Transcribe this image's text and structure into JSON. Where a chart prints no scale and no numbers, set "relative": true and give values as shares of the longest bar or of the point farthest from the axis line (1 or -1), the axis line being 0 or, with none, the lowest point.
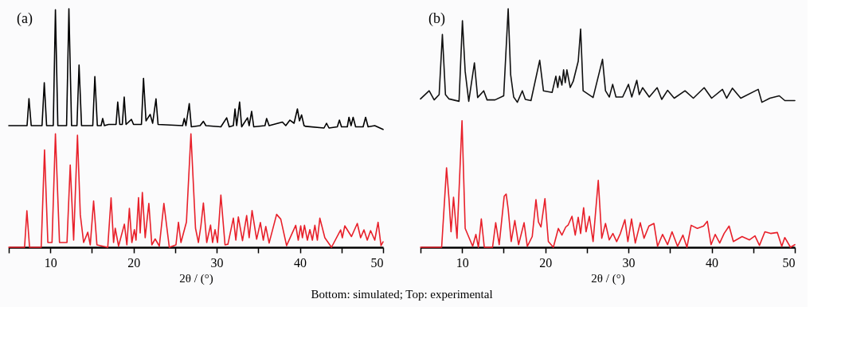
{
  "chart_data": [
    {
      "type": "line",
      "title": "(a)",
      "xlabel": "2θ / (°)",
      "relative": true,
      "grid": false,
      "annotations": [
        "Bottom: simulated; Top: experimental"
      ],
      "xlim": [
        5,
        50
      ],
      "xticks": [
        {
          "value": 5,
          "label": null
        },
        10,
        {
          "value": 15,
          "label": null
        },
        20,
        {
          "value": 25,
          "label": null
        },
        30,
        {
          "value": 35,
          "label": null
        },
        40,
        {
          "value": 45,
          "label": null
        },
        50
      ],
      "series": [
        {
          "color": "#000000",
          "x": [
            5,
            7.2,
            7.43,
            7.7,
            9.0,
            9.27,
            9.55,
            10.35,
            10.61,
            10.9,
            11.95,
            12.23,
            12.55,
            13.2,
            13.45,
            13.75,
            15.1,
            15.35,
            15.65,
            16.1,
            16.29,
            16.5,
            17.0,
            17.9,
            18.1,
            18.35,
            18.65,
            18.88,
            19.1,
            19.75,
            20.0,
            20.95,
            21.2,
            21.5,
            22.0,
            22.3,
            22.7,
            22.95,
            25.9,
            26.1,
            26.3,
            26.7,
            26.95,
            28.0,
            28.4,
            28.7,
            30.5,
            31.2,
            31.5,
            32.0,
            32.2,
            32.4,
            32.75,
            33.0,
            33.7,
            33.9,
            34.2,
            34.45,
            35.8,
            36.0,
            36.3,
            37.9,
            38.3,
            38.8,
            39.3,
            39.7,
            39.95,
            40.2,
            40.5,
            40.7,
            42.9,
            43.2,
            43.5,
            44.5,
            44.75,
            45.0,
            45.7,
            45.9,
            46.15,
            46.4,
            46.7,
            47.6,
            47.9,
            48.2,
            49.0,
            50
          ],
          "values": [
            0.51,
            0.51,
            0.623,
            0.51,
            0.51,
            0.69,
            0.51,
            0.51,
            0.996,
            0.51,
            0.51,
            1.0,
            0.51,
            0.51,
            0.764,
            0.51,
            0.51,
            0.716,
            0.51,
            0.51,
            0.54,
            0.51,
            0.515,
            0.515,
            0.609,
            0.515,
            0.515,
            0.63,
            0.515,
            0.536,
            0.515,
            0.515,
            0.708,
            0.53,
            0.557,
            0.52,
            0.622,
            0.515,
            0.51,
            0.54,
            0.51,
            0.602,
            0.505,
            0.51,
            0.528,
            0.51,
            0.505,
            0.543,
            0.505,
            0.51,
            0.58,
            0.51,
            0.609,
            0.505,
            0.543,
            0.51,
            0.57,
            0.505,
            0.51,
            0.54,
            0.51,
            0.525,
            0.51,
            0.533,
            0.52,
            0.58,
            0.53,
            0.555,
            0.51,
            0.507,
            0.5,
            0.52,
            0.5,
            0.505,
            0.533,
            0.505,
            0.505,
            0.545,
            0.51,
            0.545,
            0.505,
            0.505,
            0.545,
            0.505,
            0.51,
            0.494
          ]
        },
        {
          "color": "#e8202a",
          "x": [
            5,
            6.9,
            7.18,
            7.5,
            8.9,
            9.3,
            9.7,
            10.2,
            10.61,
            11.1,
            12.0,
            12.39,
            12.8,
            13.26,
            13.6,
            14.0,
            14.5,
            14.8,
            15.2,
            15.6,
            16.9,
            17.3,
            17.6,
            17.8,
            18.2,
            18.9,
            19.2,
            19.5,
            19.8,
            20.1,
            20.3,
            20.6,
            20.8,
            21.06,
            21.4,
            21.84,
            22.2,
            22.6,
            23.1,
            23.65,
            24.3,
            25.1,
            25.4,
            25.7,
            26.36,
            26.9,
            27.45,
            27.8,
            28.1,
            28.4,
            28.8,
            29.26,
            29.5,
            29.8,
            30.1,
            30.5,
            31.0,
            31.35,
            32.0,
            32.3,
            32.6,
            33.1,
            33.6,
            33.9,
            34.25,
            34.8,
            35.25,
            35.6,
            35.9,
            36.3,
            37.2,
            37.7,
            38.4,
            39.5,
            39.8,
            40.1,
            40.3,
            40.55,
            40.9,
            41.2,
            41.5,
            41.8,
            42.1,
            42.4,
            43.0,
            43.8,
            44.9,
            45.1,
            45.4,
            46.2,
            46.9,
            47.3,
            47.7,
            48.1,
            48.5,
            49.0,
            49.4,
            49.75,
            50
          ],
          "values": [
            0,
            0,
            0.153,
            0,
            0,
            0.408,
            0.02,
            0.02,
            0.476,
            0.02,
            0.02,
            0.345,
            0.03,
            0.47,
            0.137,
            0.02,
            0.063,
            0.01,
            0.194,
            0.01,
            0,
            0.207,
            0.02,
            0.08,
            0.005,
            0.097,
            0.01,
            0.163,
            0.02,
            0.074,
            0.03,
            0.208,
            0.06,
            0.23,
            0.04,
            0.184,
            0.01,
            0.035,
            0.005,
            0.184,
            0,
            0.01,
            0.105,
            0.02,
            0.106,
            0.476,
            0.08,
            0.02,
            0.09,
            0.186,
            0.02,
            0.093,
            0.02,
            0.074,
            0.02,
            0.219,
            0.01,
            0.013,
            0.122,
            0.03,
            0.127,
            0.028,
            0.133,
            0.04,
            0.154,
            0.034,
            0.104,
            0.03,
            0.087,
            0.018,
            0.138,
            0.118,
            0.007,
            0.092,
            0.03,
            0.09,
            0.04,
            0.092,
            0.03,
            0.074,
            0.03,
            0.092,
            0.03,
            0.122,
            0.04,
            0,
            0.073,
            0.04,
            0.09,
            0.045,
            0.1,
            0.04,
            0.073,
            0.03,
            0.07,
            0.03,
            0.105,
            0.007,
            0.023
          ]
        }
      ]
    },
    {
      "type": "line",
      "title": "(b)",
      "xlabel": "2θ / (°)",
      "relative": true,
      "grid": false,
      "xlim": [
        5,
        50
      ],
      "xticks": [
        {
          "value": 5,
          "label": null
        },
        10,
        {
          "value": 15,
          "label": null
        },
        20,
        {
          "value": 25,
          "label": null
        },
        30,
        {
          "value": 35,
          "label": null
        },
        40,
        {
          "value": 45,
          "label": null
        },
        50
      ],
      "series": [
        {
          "color": "#111111",
          "x": [
            5,
            6.04,
            6.64,
            7.24,
            7.63,
            8.0,
            8.43,
            9.63,
            10.04,
            10.37,
            10.8,
            11.48,
            11.87,
            12.6,
            13.0,
            13.96,
            15.0,
            15.54,
            15.84,
            16.2,
            16.64,
            17.24,
            17.6,
            18.28,
            19.33,
            19.78,
            20.82,
            21.27,
            21.5,
            21.72,
            22.0,
            22.2,
            22.4,
            22.6,
            23.0,
            23.36,
            23.96,
            24.25,
            24.55,
            25.75,
            26.88,
            27.24,
            27.7,
            28.1,
            28.5,
            29.3,
            30.0,
            30.4,
            31.0,
            31.3,
            31.7,
            32.5,
            33.45,
            34.0,
            34.7,
            35.5,
            36.8,
            37.8,
            39.1,
            40.0,
            41.3,
            41.8,
            42.5,
            43.5,
            45.6,
            46.04,
            47.0,
            48.13,
            48.8,
            50
          ],
          "values": [
            0.622,
            0.656,
            0.618,
            0.64,
            0.892,
            0.64,
            0.622,
            0.612,
            0.95,
            0.737,
            0.612,
            0.773,
            0.628,
            0.656,
            0.618,
            0.618,
            0.635,
            1.0,
            0.723,
            0.63,
            0.608,
            0.656,
            0.62,
            0.615,
            0.784,
            0.656,
            0.649,
            0.717,
            0.67,
            0.717,
            0.68,
            0.744,
            0.69,
            0.744,
            0.67,
            0.696,
            0.78,
            0.915,
            0.656,
            0.628,
            0.788,
            0.656,
            0.63,
            0.683,
            0.63,
            0.63,
            0.683,
            0.63,
            0.7,
            0.64,
            0.669,
            0.63,
            0.669,
            0.62,
            0.658,
            0.625,
            0.656,
            0.625,
            0.669,
            0.625,
            0.662,
            0.625,
            0.667,
            0.625,
            0.662,
            0.608,
            0.625,
            0.635,
            0.615,
            0.615
          ]
        },
        {
          "color": "#e8202a",
          "x": [
            5,
            7.54,
            8.13,
            8.43,
            8.67,
            8.97,
            9.39,
            9.99,
            10.37,
            11.27,
            11.66,
            11.96,
            12.31,
            12.67,
            13.66,
            14.04,
            14.46,
            15.06,
            15.3,
            15.54,
            15.9,
            16.34,
            16.79,
            17.45,
            17.84,
            18.43,
            18.88,
            19.18,
            19.48,
            19.96,
            20.37,
            20.97,
            21.57,
            22.0,
            22.46,
            22.76,
            23.21,
            23.6,
            23.96,
            24.25,
            24.61,
            24.9,
            25.3,
            25.75,
            26.37,
            26.79,
            27.24,
            27.69,
            28.13,
            28.58,
            29.03,
            29.57,
            29.93,
            30.37,
            30.82,
            31.42,
            31.87,
            32.46,
            33.06,
            33.5,
            34.1,
            34.7,
            35.24,
            35.9,
            36.55,
            37.03,
            37.54,
            38.28,
            39.03,
            39.48,
            39.93,
            40.43,
            40.97,
            41.5,
            42.1,
            42.61,
            43.66,
            44.55,
            45.21,
            45.75,
            46.4,
            47.09,
            47.9,
            48.43,
            48.79,
            49.48,
            50
          ],
          "values": [
            0,
            0,
            0.333,
            0.2,
            0.065,
            0.21,
            0.038,
            0.531,
            0.079,
            0.004,
            0.054,
            0,
            0.119,
            0,
            0,
            0.103,
            0.011,
            0.214,
            0.223,
            0.16,
            0.024,
            0.112,
            0.011,
            0.103,
            0.004,
            0.045,
            0.2,
            0.106,
            0.085,
            0.204,
            0.024,
            0,
            0.079,
            0.051,
            0.085,
            0.094,
            0.13,
            0.051,
            0.126,
            0.058,
            0.166,
            0.065,
            0.13,
            0.024,
            0.281,
            0.038,
            0.1,
            0.031,
            0.058,
            0.024,
            0.058,
            0.116,
            0.024,
            0.119,
            0.018,
            0.103,
            0.038,
            0.089,
            0.1,
            0.004,
            0.054,
            0.011,
            0.065,
            0.004,
            0.051,
            0,
            0.092,
            0.079,
            0.089,
            0.109,
            0.011,
            0.054,
            0.018,
            0.058,
            0.089,
            0.024,
            0.045,
            0.031,
            0.048,
            0.008,
            0.065,
            0.058,
            0.062,
            0.004,
            0.041,
            0,
            0.011
          ]
        }
      ]
    }
  ]
}
